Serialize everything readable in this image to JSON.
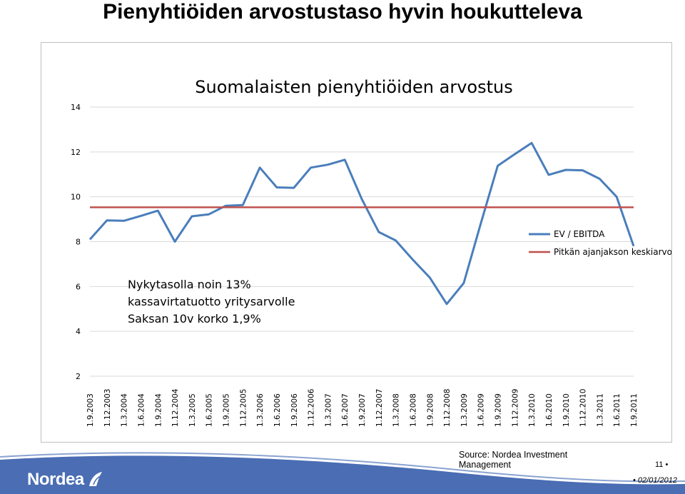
{
  "slide": {
    "title": "Pienyhtiöiden arvostustaso hyvin houkutteleva",
    "source": "Source: Nordea Investment Management",
    "page_number": "11",
    "date": "02/01/2012",
    "logo_text": "Nordea"
  },
  "colors": {
    "series_line": "#4a7ebb",
    "average_line": "#c0504d",
    "footer_band": "#4a6db3",
    "gridline": "#d9d9d9"
  },
  "chart_data": {
    "type": "line",
    "title": "Suomalaisten pienyhtiöiden arvostus",
    "xlabel": "",
    "ylabel": "",
    "ylim": [
      2,
      14
    ],
    "yticks": [
      2,
      4,
      6,
      8,
      10,
      12,
      14
    ],
    "grid": true,
    "legend_position": "right",
    "annotation": [
      "Nykytasolla noin 13%",
      "kassavirtatuotto yritysarvolle",
      "Saksan 10v korko 1,9%"
    ],
    "categories": [
      "1.9.2003",
      "1.12.2003",
      "1.3.2004",
      "1.6.2004",
      "1.9.2004",
      "1.12.2004",
      "1.3.2005",
      "1.6.2005",
      "1.9.2005",
      "1.12.2005",
      "1.3.2006",
      "1.6.2006",
      "1.9.2006",
      "1.12.2006",
      "1.3.2007",
      "1.6.2007",
      "1.9.2007",
      "1.12.2007",
      "1.3.2008",
      "1.6.2008",
      "1.9.2008",
      "1.12.2008",
      "1.3.2009",
      "1.6.2009",
      "1.9.2009",
      "1.12.2009",
      "1.3.2010",
      "1.6.2010",
      "1.9.2010",
      "1.12.2010",
      "1.3.2011",
      "1.6.2011",
      "1.9.2011"
    ],
    "series": [
      {
        "name": "EV / EBITDA",
        "values": [
          8.1,
          8.95,
          8.93,
          9.15,
          9.38,
          8.0,
          9.13,
          9.22,
          9.6,
          9.63,
          11.3,
          10.42,
          10.4,
          11.3,
          11.43,
          11.65,
          9.9,
          8.43,
          8.05,
          7.2,
          6.4,
          5.22,
          6.15,
          8.8,
          11.38,
          11.9,
          12.4,
          10.98,
          11.2,
          11.18,
          10.8,
          10.0,
          7.8
        ]
      },
      {
        "name": "Pitkän ajanjakson keskiarvo",
        "values": [
          9.53,
          9.53,
          9.53,
          9.53,
          9.53,
          9.53,
          9.53,
          9.53,
          9.53,
          9.53,
          9.53,
          9.53,
          9.53,
          9.53,
          9.53,
          9.53,
          9.53,
          9.53,
          9.53,
          9.53,
          9.53,
          9.53,
          9.53,
          9.53,
          9.53,
          9.53,
          9.53,
          9.53,
          9.53,
          9.53,
          9.53,
          9.53,
          9.53
        ]
      }
    ]
  }
}
